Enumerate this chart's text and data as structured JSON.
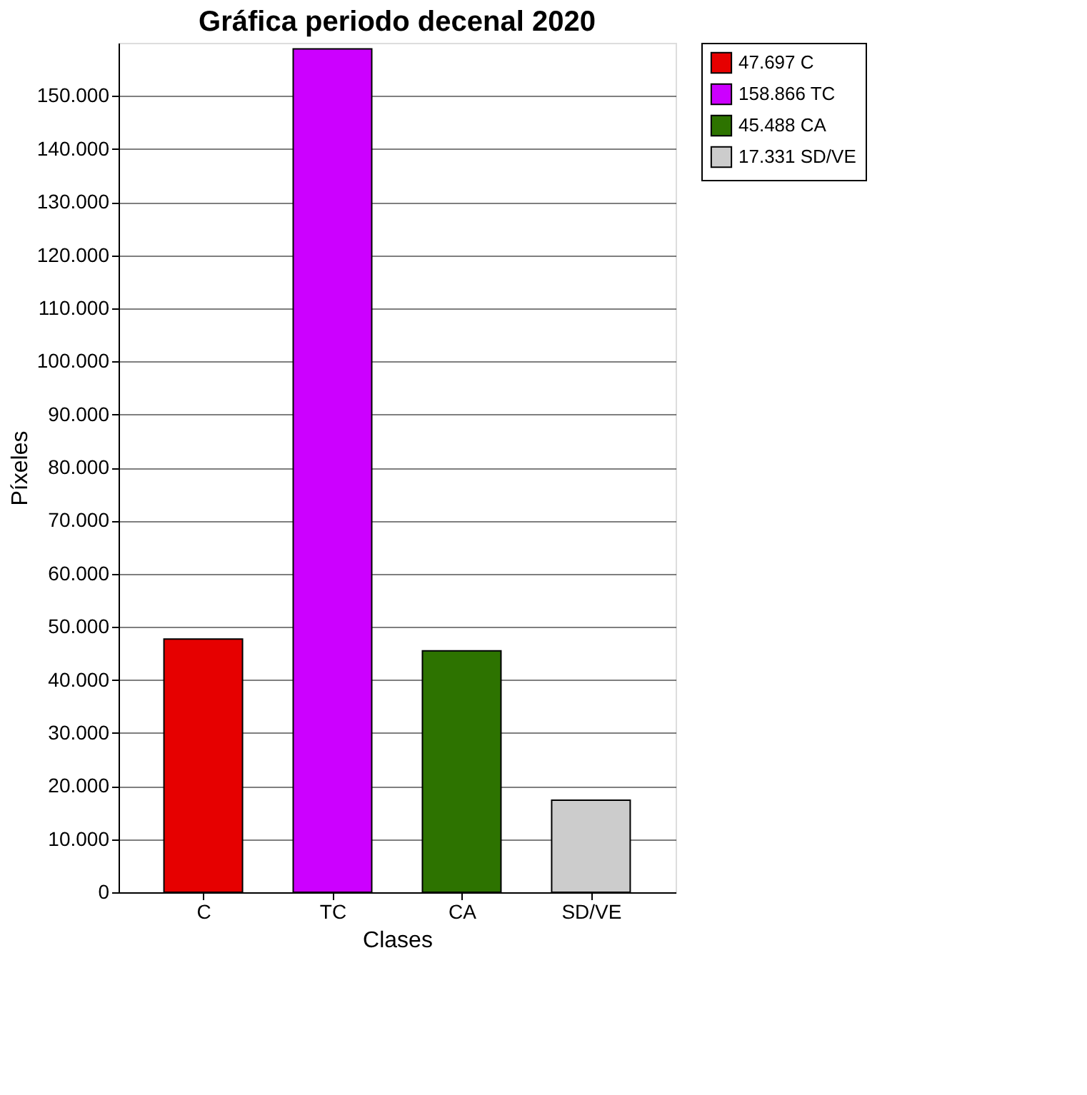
{
  "chart_data": {
    "type": "bar",
    "title": "Gráfica periodo decenal 2020",
    "xlabel": "Clases",
    "ylabel": "Píxeles",
    "categories": [
      "C",
      "TC",
      "CA",
      "SD/VE"
    ],
    "series": [
      {
        "name": "47.697 C",
        "color": "#e60000",
        "values": [
          47697,
          null,
          null,
          null
        ]
      },
      {
        "name": "158.866 TC",
        "color": "#cc00ff",
        "values": [
          null,
          158866,
          null,
          null
        ]
      },
      {
        "name": "45.488 CA",
        "color": "#2d7300",
        "values": [
          null,
          null,
          45488,
          null
        ]
      },
      {
        "name": "17.331 SD/VE",
        "color": "#cccccc",
        "values": [
          null,
          null,
          null,
          17331
        ]
      }
    ],
    "ylim": [
      0,
      160000
    ],
    "yticks": [
      {
        "value": 0,
        "label": "0"
      },
      {
        "value": 10000,
        "label": "10.000"
      },
      {
        "value": 20000,
        "label": "20.000"
      },
      {
        "value": 30000,
        "label": "30.000"
      },
      {
        "value": 40000,
        "label": "40.000"
      },
      {
        "value": 50000,
        "label": "50.000"
      },
      {
        "value": 60000,
        "label": "60.000"
      },
      {
        "value": 70000,
        "label": "70.000"
      },
      {
        "value": 80000,
        "label": "80.000"
      },
      {
        "value": 90000,
        "label": "90.000"
      },
      {
        "value": 100000,
        "label": "100.000"
      },
      {
        "value": 110000,
        "label": "110.000"
      },
      {
        "value": 120000,
        "label": "120.000"
      },
      {
        "value": 130000,
        "label": "130.000"
      },
      {
        "value": 140000,
        "label": "140.000"
      },
      {
        "value": 150000,
        "label": "150.000"
      }
    ],
    "grid": "y",
    "legend": "top right"
  }
}
